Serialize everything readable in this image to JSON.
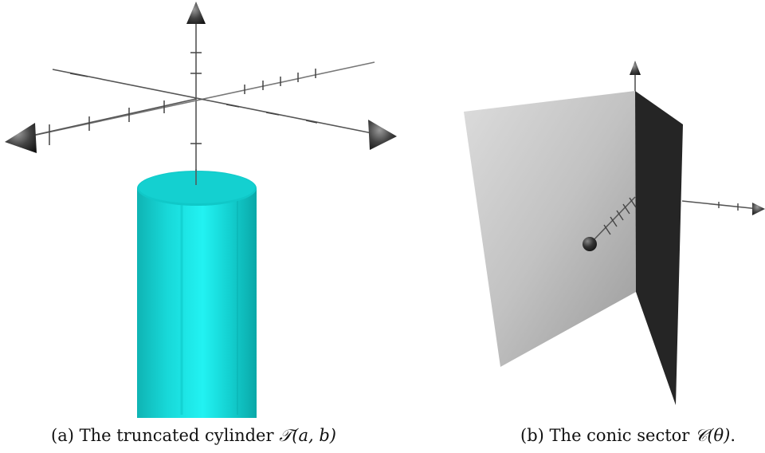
{
  "figure": {
    "subfigures": [
      {
        "label": "(a)",
        "caption_text": "The truncated cylinder",
        "caption_symbol": "𝒯",
        "caption_args": "(a, b)",
        "caption_end": ""
      },
      {
        "label": "(b)",
        "caption_text": "The conic sector",
        "caption_symbol": "𝒞",
        "caption_args": "(θ)",
        "caption_end": "."
      }
    ]
  },
  "colors": {
    "cylinder": "#00e5e5",
    "axes": "#555555",
    "arrowhead": "#2a2a2a",
    "plane_light": "#c8c8c8",
    "plane_dark": "#252525"
  }
}
